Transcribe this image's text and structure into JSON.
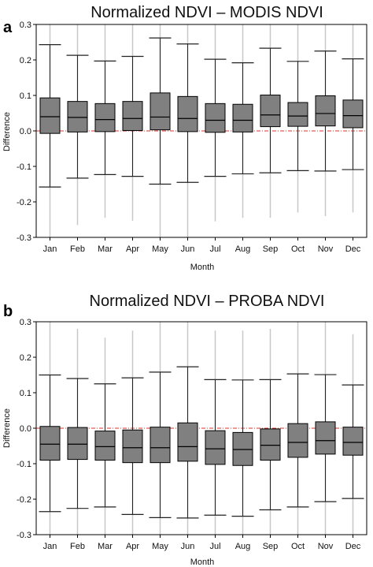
{
  "colors": {
    "box_fill": "#808080",
    "whisker": "#222222",
    "outer_range": "#c8c8c8",
    "zero_line": "#e0302a",
    "frame": "#000000"
  },
  "chart_data": [
    {
      "type": "boxplot",
      "panel": "a",
      "title": "Normalized NDVI – MODIS NDVI",
      "xlabel": "Month",
      "ylabel": "Difference",
      "ylim": [
        -0.3,
        0.3
      ],
      "yticks": [
        "0.3",
        "0.2",
        "0.1",
        "0.0",
        "-0.1",
        "-0.2",
        "-0.3"
      ],
      "ytick_values": [
        0.3,
        0.2,
        0.1,
        0.0,
        -0.1,
        -0.2,
        -0.3
      ],
      "reference_line": 0.0,
      "grid": false,
      "categories": [
        "Jan",
        "Feb",
        "Mar",
        "Apr",
        "May",
        "Jun",
        "Jul",
        "Aug",
        "Sep",
        "Oct",
        "Nov",
        "Dec"
      ],
      "boxes": [
        {
          "outer_min": -0.3,
          "whisker_low": -0.158,
          "q1": -0.007,
          "median": 0.04,
          "q3": 0.093,
          "whisker_high": 0.243,
          "outer_max": 0.3
        },
        {
          "outer_min": -0.265,
          "whisker_low": -0.133,
          "q1": -0.003,
          "median": 0.038,
          "q3": 0.083,
          "whisker_high": 0.213,
          "outer_max": 0.3
        },
        {
          "outer_min": -0.245,
          "whisker_low": -0.123,
          "q1": -0.002,
          "median": 0.032,
          "q3": 0.077,
          "whisker_high": 0.197,
          "outer_max": 0.3
        },
        {
          "outer_min": -0.253,
          "whisker_low": -0.128,
          "q1": 0.001,
          "median": 0.035,
          "q3": 0.083,
          "whisker_high": 0.21,
          "outer_max": 0.3
        },
        {
          "outer_min": -0.3,
          "whisker_low": -0.15,
          "q1": 0.003,
          "median": 0.039,
          "q3": 0.107,
          "whisker_high": 0.262,
          "outer_max": 0.3
        },
        {
          "outer_min": -0.3,
          "whisker_low": -0.145,
          "q1": -0.002,
          "median": 0.035,
          "q3": 0.097,
          "whisker_high": 0.245,
          "outer_max": 0.3
        },
        {
          "outer_min": -0.255,
          "whisker_low": -0.128,
          "q1": -0.004,
          "median": 0.03,
          "q3": 0.077,
          "whisker_high": 0.202,
          "outer_max": 0.3
        },
        {
          "outer_min": -0.245,
          "whisker_low": -0.121,
          "q1": -0.003,
          "median": 0.03,
          "q3": 0.075,
          "whisker_high": 0.192,
          "outer_max": 0.3
        },
        {
          "outer_min": -0.245,
          "whisker_low": -0.118,
          "q1": 0.012,
          "median": 0.045,
          "q3": 0.101,
          "whisker_high": 0.233,
          "outer_max": 0.3
        },
        {
          "outer_min": -0.23,
          "whisker_low": -0.112,
          "q1": 0.013,
          "median": 0.042,
          "q3": 0.08,
          "whisker_high": 0.196,
          "outer_max": 0.3
        },
        {
          "outer_min": -0.24,
          "whisker_low": -0.113,
          "q1": 0.014,
          "median": 0.049,
          "q3": 0.099,
          "whisker_high": 0.225,
          "outer_max": 0.3
        },
        {
          "outer_min": -0.23,
          "whisker_low": -0.109,
          "q1": 0.009,
          "median": 0.043,
          "q3": 0.087,
          "whisker_high": 0.203,
          "outer_max": 0.3
        }
      ]
    },
    {
      "type": "boxplot",
      "panel": "b",
      "title": "Normalized NDVI – PROBA NDVI",
      "xlabel": "Month",
      "ylabel": "Difference",
      "ylim": [
        -0.3,
        0.3
      ],
      "yticks": [
        "0.3",
        "0.2",
        "0.1",
        "0.0",
        "-0.1",
        "-0.2",
        "-0.3"
      ],
      "ytick_values": [
        0.3,
        0.2,
        0.1,
        0.0,
        -0.1,
        -0.2,
        -0.3
      ],
      "reference_line": 0.0,
      "grid": false,
      "categories": [
        "Jan",
        "Feb",
        "Mar",
        "Apr",
        "May",
        "Jun",
        "Jul",
        "Aug",
        "Sep",
        "Oct",
        "Nov",
        "Dec"
      ],
      "boxes": [
        {
          "outer_min": -0.3,
          "whisker_low": -0.235,
          "q1": -0.09,
          "median": -0.045,
          "q3": 0.005,
          "whisker_high": 0.15,
          "outer_max": 0.3
        },
        {
          "outer_min": -0.3,
          "whisker_low": -0.226,
          "q1": -0.088,
          "median": -0.045,
          "q3": 0.002,
          "whisker_high": 0.14,
          "outer_max": 0.28
        },
        {
          "outer_min": -0.3,
          "whisker_low": -0.222,
          "q1": -0.09,
          "median": -0.052,
          "q3": -0.008,
          "whisker_high": 0.125,
          "outer_max": 0.255
        },
        {
          "outer_min": -0.3,
          "whisker_low": -0.243,
          "q1": -0.097,
          "median": -0.055,
          "q3": -0.005,
          "whisker_high": 0.142,
          "outer_max": 0.275
        },
        {
          "outer_min": -0.3,
          "whisker_low": -0.252,
          "q1": -0.097,
          "median": -0.055,
          "q3": 0.003,
          "whisker_high": 0.158,
          "outer_max": 0.3
        },
        {
          "outer_min": -0.3,
          "whisker_low": -0.253,
          "q1": -0.093,
          "median": -0.052,
          "q3": 0.015,
          "whisker_high": 0.173,
          "outer_max": 0.3
        },
        {
          "outer_min": -0.3,
          "whisker_low": -0.245,
          "q1": -0.102,
          "median": -0.058,
          "q3": -0.007,
          "whisker_high": 0.137,
          "outer_max": 0.275
        },
        {
          "outer_min": -0.3,
          "whisker_low": -0.248,
          "q1": -0.105,
          "median": -0.06,
          "q3": -0.012,
          "whisker_high": 0.136,
          "outer_max": 0.275
        },
        {
          "outer_min": -0.3,
          "whisker_low": -0.23,
          "q1": -0.09,
          "median": -0.048,
          "q3": -0.002,
          "whisker_high": 0.137,
          "outer_max": 0.28
        },
        {
          "outer_min": -0.3,
          "whisker_low": -0.222,
          "q1": -0.082,
          "median": -0.04,
          "q3": 0.013,
          "whisker_high": 0.153,
          "outer_max": 0.3
        },
        {
          "outer_min": -0.3,
          "whisker_low": -0.207,
          "q1": -0.073,
          "median": -0.035,
          "q3": 0.018,
          "whisker_high": 0.151,
          "outer_max": 0.3
        },
        {
          "outer_min": -0.3,
          "whisker_low": -0.198,
          "q1": -0.076,
          "median": -0.04,
          "q3": 0.003,
          "whisker_high": 0.122,
          "outer_max": 0.265
        }
      ]
    }
  ]
}
